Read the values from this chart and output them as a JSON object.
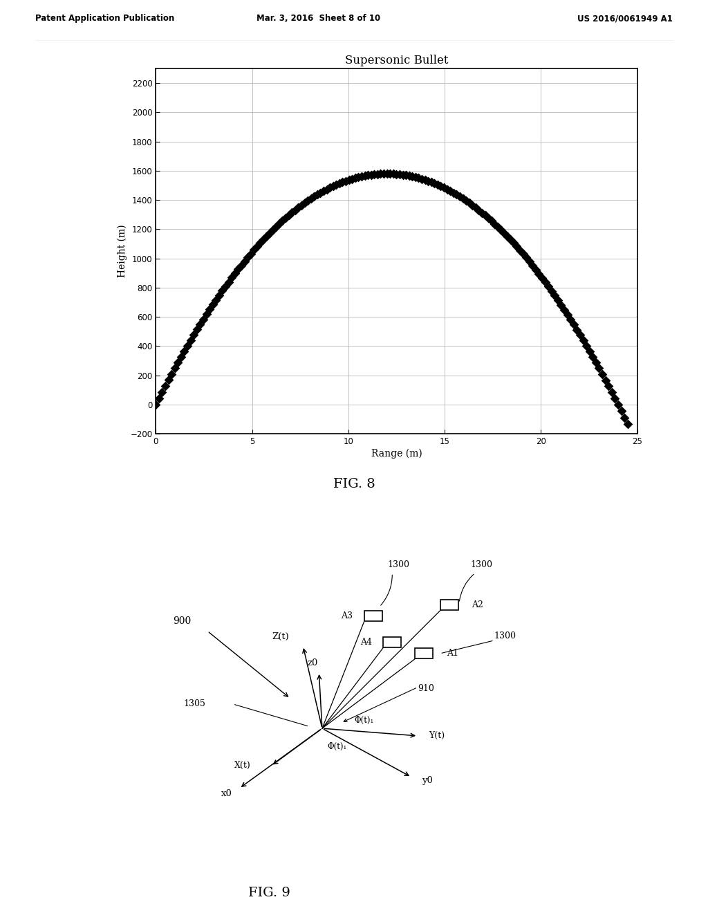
{
  "fig8": {
    "title": "Supersonic Bullet",
    "xlabel": "Range (m)",
    "ylabel": "Height (m)",
    "xlim": [
      0,
      25
    ],
    "ylim": [
      -200,
      2300
    ],
    "xticks": [
      0,
      5,
      10,
      15,
      20,
      25
    ],
    "yticks": [
      -200,
      0,
      200,
      400,
      600,
      800,
      1000,
      1200,
      1400,
      1600,
      1800,
      2000,
      2200
    ],
    "marker": "D",
    "marker_color": "black",
    "marker_size": 7,
    "peak_x": 12.0,
    "peak_y": 1580,
    "start_x": 0.0,
    "end_x": 24.5,
    "n_points": 150
  },
  "header": {
    "left": "Patent Application Publication",
    "middle": "Mar. 3, 2016  Sheet 8 of 10",
    "right": "US 2016/0061949 A1"
  },
  "fig8_caption": "FIG. 8",
  "fig9_caption": "FIG. 9",
  "background_color": "#ffffff"
}
